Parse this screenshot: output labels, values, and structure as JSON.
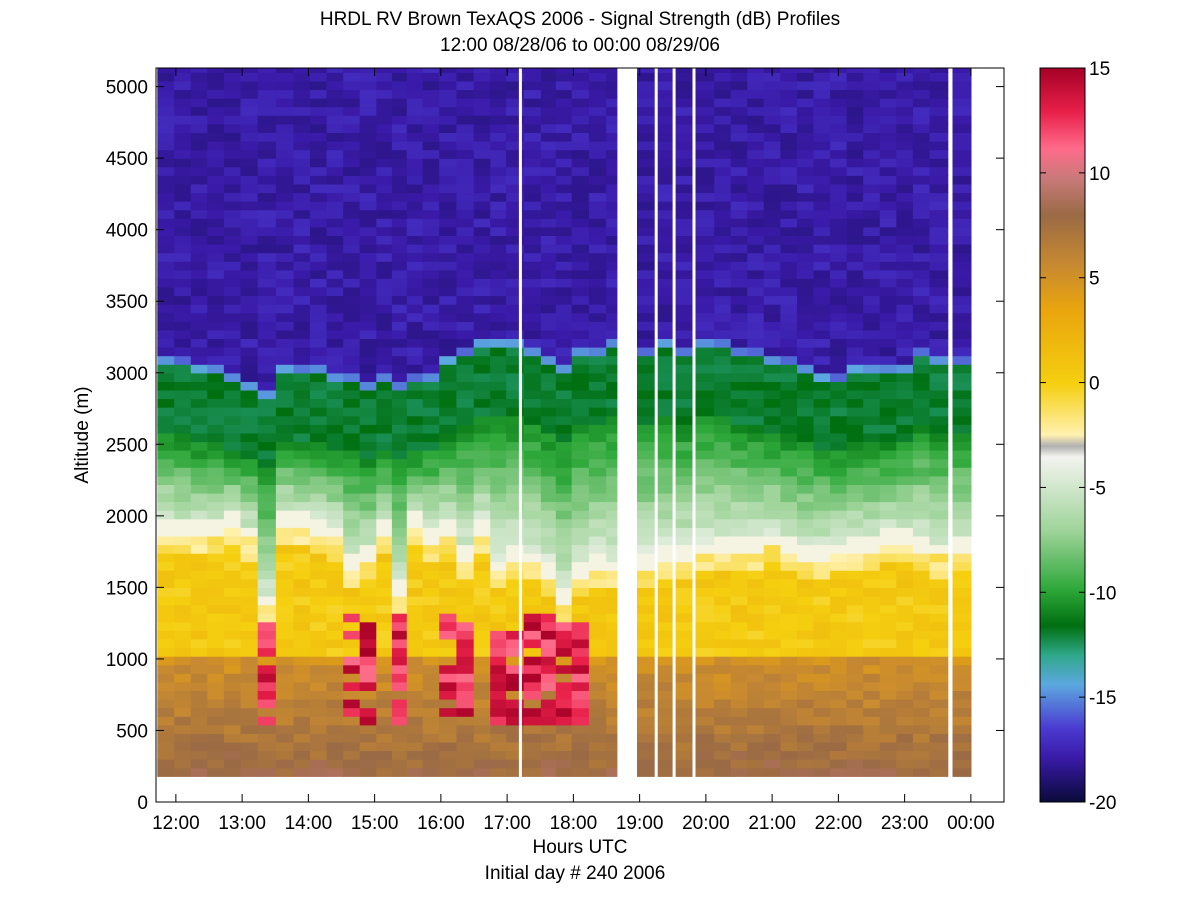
{
  "chart_data": {
    "type": "heatmap",
    "title": "HRDL RV Brown TexAQS 2006 - Signal Strength (dB) Profiles",
    "subtitle": "12:00 08/28/06 to 00:00 08/29/06",
    "xlabel": "Hours UTC",
    "xlabel2": "Initial day # 240  2006",
    "ylabel": "Altitude (m)",
    "x_ticks": [
      "12:00",
      "13:00",
      "14:00",
      "15:00",
      "16:00",
      "17:00",
      "18:00",
      "19:00",
      "20:00",
      "21:00",
      "22:00",
      "23:00",
      "00:00"
    ],
    "y_ticks": [
      0,
      500,
      1000,
      1500,
      2000,
      2500,
      3000,
      3500,
      4000,
      4500,
      5000
    ],
    "ylim": [
      0,
      5130
    ],
    "xlim_hours": [
      11.7,
      24.5
    ],
    "data_ymin": 180,
    "colorbar": {
      "label_ticks": [
        15,
        10,
        5,
        0,
        -5,
        -10,
        -15,
        -20
      ],
      "range": [
        -20,
        15
      ]
    },
    "gaps_hours": [
      17.2,
      18.8,
      19.25,
      19.52,
      19.82,
      23.7
    ],
    "profiles": [
      {
        "hour": 11.85,
        "top": 3080,
        "ml": 1900,
        "bl": 0
      },
      {
        "hour": 12.1,
        "top": 3060,
        "ml": 1870,
        "bl": 0
      },
      {
        "hour": 12.35,
        "top": 3000,
        "ml": 1900,
        "bl": 0
      },
      {
        "hour": 12.6,
        "top": 2990,
        "ml": 1880,
        "bl": 0
      },
      {
        "hour": 12.85,
        "top": 2960,
        "ml": 1940,
        "bl": 0
      },
      {
        "hour": 13.1,
        "top": 2920,
        "ml": 1850,
        "bl": 0
      },
      {
        "hour": 13.37,
        "top": 2850,
        "ml": 1380,
        "bl": 0.9
      },
      {
        "hour": 13.65,
        "top": 3040,
        "ml": 1960,
        "bl": 0
      },
      {
        "hour": 13.9,
        "top": 3000,
        "ml": 1930,
        "bl": 0
      },
      {
        "hour": 14.15,
        "top": 3010,
        "ml": 1900,
        "bl": 0
      },
      {
        "hour": 14.4,
        "top": 2980,
        "ml": 1850,
        "bl": 0
      },
      {
        "hour": 14.65,
        "top": 2940,
        "ml": 1650,
        "bl": 0.8
      },
      {
        "hour": 14.9,
        "top": 2890,
        "ml": 1700,
        "bl": 0.9
      },
      {
        "hour": 15.15,
        "top": 2950,
        "ml": 1900,
        "bl": 0
      },
      {
        "hour": 15.37,
        "top": 2900,
        "ml": 1450,
        "bl": 1
      },
      {
        "hour": 15.6,
        "top": 2950,
        "ml": 1950,
        "bl": 0
      },
      {
        "hour": 15.85,
        "top": 2980,
        "ml": 1830,
        "bl": 0.5
      },
      {
        "hour": 16.1,
        "top": 3050,
        "ml": 1880,
        "bl": 0.7
      },
      {
        "hour": 16.37,
        "top": 3140,
        "ml": 1700,
        "bl": 1
      },
      {
        "hour": 16.62,
        "top": 3170,
        "ml": 1880,
        "bl": 0.3
      },
      {
        "hour": 16.87,
        "top": 3180,
        "ml": 1620,
        "bl": 0.9
      },
      {
        "hour": 17.1,
        "top": 3190,
        "ml": 1700,
        "bl": 0.9
      },
      {
        "hour": 17.4,
        "top": 3160,
        "ml": 1680,
        "bl": 1
      },
      {
        "hour": 17.62,
        "top": 3080,
        "ml": 1600,
        "bl": 0.9
      },
      {
        "hour": 17.85,
        "top": 3040,
        "ml": 1400,
        "bl": 1
      },
      {
        "hour": 18.1,
        "top": 3150,
        "ml": 1600,
        "bl": 1
      },
      {
        "hour": 18.37,
        "top": 3150,
        "ml": 1650,
        "bl": 0.2
      },
      {
        "hour": 18.62,
        "top": 3200,
        "ml": 1620,
        "bl": 0
      },
      {
        "hour": 19.1,
        "top": 3150,
        "ml": 1650,
        "bl": 0
      },
      {
        "hour": 19.38,
        "top": 3180,
        "ml": 1700,
        "bl": 0
      },
      {
        "hour": 19.67,
        "top": 3160,
        "ml": 1700,
        "bl": 0
      },
      {
        "hour": 20.0,
        "top": 3200,
        "ml": 1740,
        "bl": 0
      },
      {
        "hour": 20.25,
        "top": 3170,
        "ml": 1760,
        "bl": 0
      },
      {
        "hour": 20.5,
        "top": 3140,
        "ml": 1780,
        "bl": 0
      },
      {
        "hour": 20.75,
        "top": 3120,
        "ml": 1760,
        "bl": 0
      },
      {
        "hour": 21.0,
        "top": 3080,
        "ml": 1800,
        "bl": 0
      },
      {
        "hour": 21.25,
        "top": 3050,
        "ml": 1750,
        "bl": 0
      },
      {
        "hour": 21.5,
        "top": 3020,
        "ml": 1700,
        "bl": 0
      },
      {
        "hour": 21.75,
        "top": 2980,
        "ml": 1720,
        "bl": 0
      },
      {
        "hour": 22.0,
        "top": 2950,
        "ml": 1740,
        "bl": 0
      },
      {
        "hour": 22.25,
        "top": 3020,
        "ml": 1760,
        "bl": 0
      },
      {
        "hour": 22.5,
        "top": 3020,
        "ml": 1760,
        "bl": 0
      },
      {
        "hour": 22.75,
        "top": 3010,
        "ml": 1820,
        "bl": 0
      },
      {
        "hour": 23.0,
        "top": 3030,
        "ml": 1840,
        "bl": 0
      },
      {
        "hour": 23.25,
        "top": 3120,
        "ml": 1780,
        "bl": 0
      },
      {
        "hour": 23.5,
        "top": 3100,
        "ml": 1730,
        "bl": 0
      },
      {
        "hour": 23.85,
        "top": 3080,
        "ml": 1750,
        "bl": 0
      }
    ]
  }
}
